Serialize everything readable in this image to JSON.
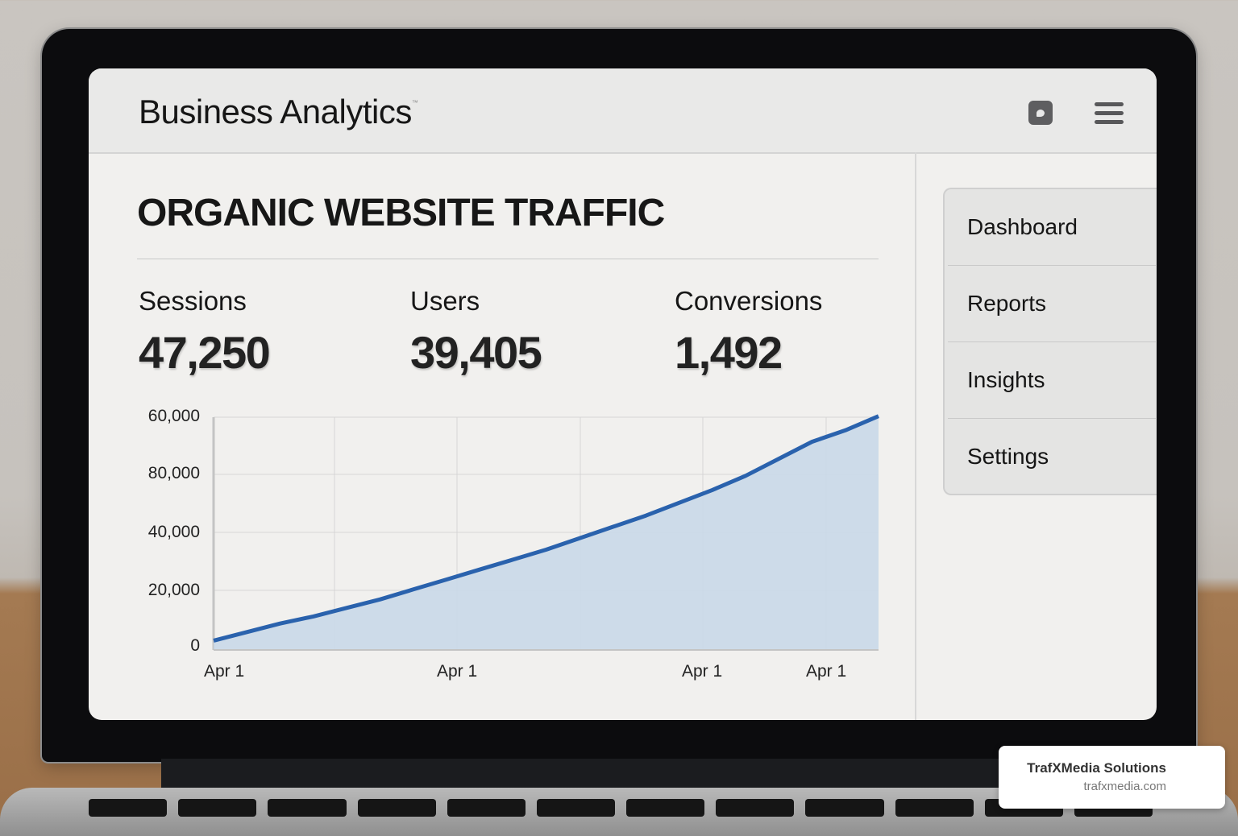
{
  "app": {
    "title": "Business Analytics",
    "trademark": "™",
    "header_icons": [
      "chat-bubble-icon",
      "hamburger-menu-icon"
    ]
  },
  "sidebar": {
    "items": [
      {
        "label": "Dashboard"
      },
      {
        "label": "Reports"
      },
      {
        "label": "Insights"
      },
      {
        "label": "Settings"
      }
    ]
  },
  "main": {
    "title": "ORGANIC WEBSITE TRAFFIC",
    "metrics": [
      {
        "label": "Sessions",
        "value": "47,250"
      },
      {
        "label": "Users",
        "value": "39,405"
      },
      {
        "label": "Conversions",
        "value": "1,492"
      }
    ]
  },
  "chart_data": {
    "type": "area",
    "title": "",
    "xlabel": "",
    "ylabel": "",
    "y_tick_labels": [
      "60,000",
      "80,000",
      "40,000",
      "20,000",
      "0"
    ],
    "x_tick_labels": [
      "Apr 1",
      "Apr 1",
      "Apr 1",
      "Apr 1"
    ],
    "ylim": [
      0,
      80000
    ],
    "grid": true,
    "legend": "none",
    "line_color": "#2a62ad",
    "fill_color": "#c9d8e8",
    "series": [
      {
        "name": "Sessions",
        "x_index": [
          0,
          1,
          2,
          3,
          4,
          5,
          6,
          7,
          8,
          9,
          10,
          11,
          12,
          13,
          14,
          15,
          16,
          17,
          18,
          19,
          20
        ],
        "values": [
          3000,
          6000,
          9000,
          11500,
          14500,
          17500,
          21000,
          24500,
          28000,
          31500,
          35000,
          39000,
          43000,
          47000,
          51500,
          56000,
          61000,
          67000,
          73000,
          77000,
          82000
        ]
      }
    ]
  },
  "brand": {
    "name": "TrafXMedia Solutions",
    "url": "trafxmedia.com"
  }
}
